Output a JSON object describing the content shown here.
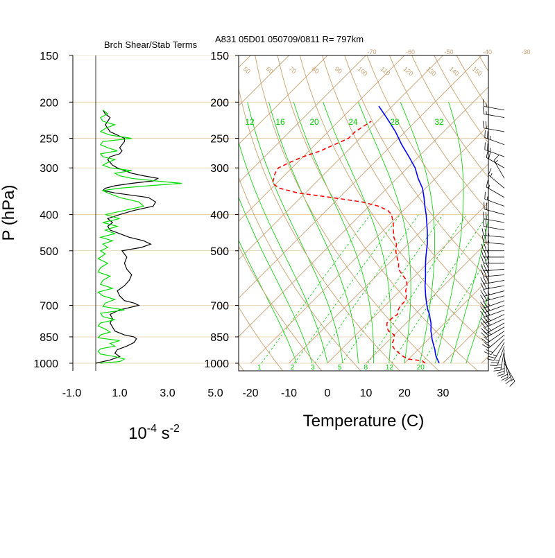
{
  "header": {
    "station_info": "A831 05D01 050709/0811 R= 797km",
    "left_panel_title": "Brch Shear/Stab Terms"
  },
  "colors": {
    "temperature": "#0000ff",
    "dewpoint": "#ff0000",
    "richardson_black": "#000000",
    "richardson_green": "#00dd00",
    "isobar": "#e8c8a0",
    "isotherm": "#c8a070",
    "mixing_ratio": "#00cc00",
    "wind_barb": "#000000"
  },
  "chart_data": [
    {
      "type": "line",
      "panel": "shear-stability",
      "title": "Brch Shear/Stab Terms",
      "ylabel": "P (hPa)",
      "xlabel_base": "10",
      "xlabel_base_exp": "-4",
      "xlabel_unit": " s",
      "xlabel_unit_exp": "-2",
      "xlim": [
        -1.0,
        5.0
      ],
      "x_ticks": [
        "-1.0",
        "1.0",
        "3.0",
        "5.0"
      ],
      "x_tick_values": [
        -1.0,
        1.0,
        3.0,
        5.0
      ],
      "ylim": [
        1000,
        150
      ],
      "y_scale": "log",
      "y_ticks": [
        150,
        200,
        250,
        300,
        400,
        500,
        700,
        850,
        1000
      ],
      "zero_line": 0,
      "series": [
        {
          "color": "black",
          "p": [
            1000,
            980,
            960,
            940,
            920,
            900,
            880,
            860,
            850,
            840,
            820,
            800,
            780,
            760,
            740,
            720,
            700,
            690,
            680,
            660,
            640,
            620,
            600,
            580,
            560,
            540,
            520,
            500,
            490,
            480,
            470,
            460,
            450,
            440,
            430,
            420,
            410,
            400,
            390,
            380,
            370,
            360,
            350,
            345,
            340,
            335,
            330,
            325,
            320,
            315,
            310,
            305,
            300,
            295,
            290,
            285,
            280,
            275,
            270,
            265,
            260,
            255,
            250,
            245,
            240,
            235,
            230,
            225,
            220,
            215,
            210
          ],
          "values": [
            0.0,
            0.6,
            1.0,
            0.8,
            0.9,
            1.3,
            1.6,
            1.7,
            1.6,
            1.2,
            0.8,
            0.7,
            0.6,
            0.7,
            0.6,
            1.0,
            1.8,
            1.6,
            1.2,
            1.0,
            0.9,
            1.2,
            1.4,
            1.5,
            1.3,
            1.2,
            1.3,
            1.1,
            1.9,
            2.3,
            2.0,
            1.4,
            1.0,
            0.6,
            0.5,
            0.7,
            0.5,
            1.0,
            1.6,
            2.4,
            2.5,
            2.2,
            0.8,
            0.3,
            0.4,
            0.8,
            1.5,
            2.4,
            2.6,
            2.0,
            1.5,
            1.2,
            0.9,
            0.7,
            0.6,
            0.5,
            0.6,
            1.0,
            1.1,
            1.0,
            1.1,
            1.2,
            1.2,
            0.9,
            0.6,
            0.5,
            0.4,
            0.5,
            0.6,
            0.4,
            0.3
          ]
        },
        {
          "color": "green",
          "p": [
            1000,
            990,
            975,
            960,
            945,
            930,
            915,
            900,
            885,
            870,
            855,
            840,
            825,
            810,
            795,
            780,
            765,
            750,
            735,
            720,
            705,
            690,
            675,
            660,
            645,
            630,
            615,
            600,
            585,
            570,
            555,
            540,
            525,
            510,
            500,
            490,
            480,
            470,
            460,
            450,
            440,
            430,
            420,
            410,
            400,
            390,
            380,
            370,
            360,
            350,
            345,
            340,
            335,
            330,
            325,
            320,
            315,
            310,
            305,
            300,
            295,
            290,
            285,
            280,
            275,
            270,
            265,
            260,
            255,
            250,
            245,
            240,
            235,
            230,
            225,
            220,
            215,
            210
          ],
          "values": [
            0.2,
            1.0,
            1.2,
            0.8,
            0.2,
            0.1,
            0.2,
            0.8,
            0.6,
            1.0,
            0.1,
            0.2,
            0.6,
            0.4,
            0.1,
            0.2,
            0.8,
            0.3,
            0.2,
            1.2,
            0.3,
            0.4,
            0.8,
            0.3,
            0.1,
            0.7,
            0.2,
            0.3,
            0.6,
            0.1,
            0.2,
            0.5,
            0.1,
            0.4,
            0.2,
            0.5,
            0.3,
            0.7,
            0.2,
            0.8,
            0.4,
            0.9,
            0.3,
            1.0,
            0.4,
            1.2,
            2.0,
            1.8,
            1.0,
            0.5,
            0.3,
            1.0,
            2.2,
            3.6,
            2.5,
            1.5,
            1.0,
            0.8,
            1.5,
            0.6,
            0.3,
            0.5,
            0.8,
            0.3,
            0.2,
            0.9,
            0.5,
            0.2,
            0.3,
            1.5,
            0.6,
            0.2,
            0.4,
            0.8,
            0.3,
            0.2,
            0.5,
            0.3
          ]
        }
      ]
    },
    {
      "type": "line",
      "panel": "skew-t",
      "title": "A831 05D01 050709/0811 R= 797km",
      "xlabel": "Temperature (C)",
      "ylabel": "",
      "xlim": [
        -25,
        40
      ],
      "x_ticks": [
        -20,
        -10,
        0,
        10,
        20,
        30
      ],
      "ylim": [
        1000,
        150
      ],
      "y_scale": "log",
      "y_ticks": [
        150,
        200,
        250,
        300,
        400,
        500,
        700,
        850,
        1000
      ],
      "isotherm_labels": [
        "-70",
        "-60",
        "-50",
        "-40",
        "-30",
        "-20",
        "-10",
        "0",
        "10",
        "20",
        "30"
      ],
      "theta_labels": [
        "50",
        "60",
        "70",
        "80",
        "90",
        "100",
        "110",
        "120",
        "130",
        "140",
        "150"
      ],
      "mixing_ratio_labels": [
        "1",
        "2",
        "3",
        "5",
        "8",
        "12",
        "20"
      ],
      "sat_adiabat_labels": [
        "12",
        "16",
        "20",
        "24",
        "28",
        "32"
      ],
      "series": [
        {
          "color": "blue",
          "p": [
            1000,
            980,
            960,
            940,
            920,
            900,
            880,
            860,
            840,
            820,
            800,
            780,
            760,
            740,
            720,
            700,
            680,
            660,
            640,
            620,
            600,
            580,
            560,
            540,
            520,
            500,
            480,
            460,
            440,
            420,
            400,
            380,
            360,
            340,
            320,
            300,
            280,
            260,
            240,
            220,
            205
          ],
          "values": [
            29,
            27.8,
            26.5,
            25.4,
            24.4,
            23.2,
            22,
            20.8,
            19.7,
            18.5,
            17.5,
            16.4,
            15.1,
            13.8,
            12.2,
            10.8,
            9.4,
            8.0,
            6.6,
            5.2,
            3.9,
            2.5,
            1.0,
            -0.5,
            -2.0,
            -3.5,
            -5.0,
            -6.8,
            -8.7,
            -10.8,
            -13.0,
            -15.5,
            -18.0,
            -20.8,
            -24.5,
            -28.0,
            -32.5,
            -37.5,
            -42.5,
            -48.5,
            -53.5
          ]
        },
        {
          "color": "red",
          "dashed": true,
          "p": [
            1000,
            985,
            975,
            960,
            940,
            920,
            900,
            880,
            860,
            840,
            820,
            800,
            780,
            760,
            740,
            720,
            700,
            680,
            660,
            640,
            620,
            600,
            580,
            560,
            540,
            520,
            500,
            480,
            460,
            440,
            420,
            400,
            390,
            380,
            370,
            360,
            350,
            340,
            330,
            320,
            310,
            300,
            290,
            280,
            270,
            260,
            250,
            240,
            230,
            225
          ],
          "values": [
            25.4,
            24.0,
            20.0,
            18.0,
            16.0,
            14.0,
            12.5,
            11.5,
            11.0,
            10.0,
            7.5,
            6.0,
            5.0,
            5.0,
            5.5,
            4.5,
            4.0,
            4.0,
            3.0,
            1.5,
            0.5,
            -1.0,
            -3.5,
            -6.0,
            -7.5,
            -9.5,
            -11.5,
            -13.0,
            -15.5,
            -17.5,
            -19.5,
            -22.0,
            -24.0,
            -27.5,
            -33.0,
            -42.0,
            -52.0,
            -58.0,
            -61.0,
            -62.0,
            -63.0,
            -63.5,
            -62.0,
            -60.0,
            -57.0,
            -55.0,
            -53.0,
            -53.0,
            -52.0,
            -51.5
          ]
        }
      ]
    },
    {
      "type": "wind-barbs",
      "panel": "wind-profile",
      "p": [
        1000,
        980,
        960,
        940,
        920,
        900,
        880,
        860,
        840,
        820,
        800,
        780,
        760,
        740,
        720,
        700,
        680,
        660,
        640,
        620,
        600,
        580,
        560,
        540,
        520,
        500,
        480,
        460,
        440,
        420,
        400,
        380,
        360,
        340,
        320,
        300,
        280,
        260,
        240,
        220,
        210
      ],
      "speed_kt": [
        15,
        20,
        20,
        25,
        25,
        25,
        25,
        20,
        20,
        20,
        25,
        25,
        30,
        30,
        30,
        30,
        25,
        25,
        25,
        25,
        30,
        30,
        30,
        30,
        30,
        25,
        25,
        25,
        20,
        20,
        20,
        15,
        15,
        15,
        15,
        20,
        25,
        25,
        20,
        15,
        15
      ],
      "direction_deg": [
        150,
        160,
        170,
        180,
        190,
        200,
        210,
        220,
        230,
        235,
        240,
        240,
        245,
        245,
        250,
        250,
        250,
        255,
        255,
        260,
        260,
        265,
        265,
        270,
        270,
        270,
        275,
        275,
        280,
        280,
        285,
        290,
        300,
        310,
        330,
        300,
        290,
        290,
        280,
        280,
        280
      ]
    }
  ]
}
